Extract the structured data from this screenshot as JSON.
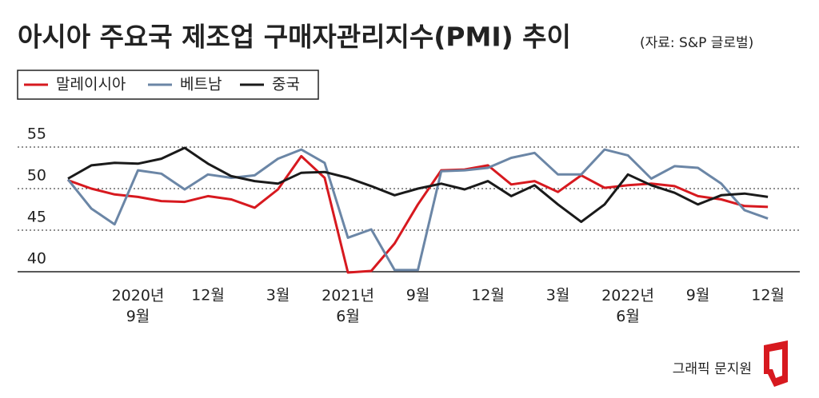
{
  "chart_data": {
    "type": "line",
    "title": "아시아 주요국 제조업 구매자관리지수(PMI) 추이",
    "source": "(자료: S&P 글로벌)",
    "credit": "그래픽 문지원",
    "categories": [
      null,
      null,
      null,
      "2020년 9월",
      null,
      null,
      "12월",
      null,
      null,
      "3월",
      null,
      null,
      "2021년 6월",
      null,
      null,
      "9월",
      null,
      null,
      "12월",
      null,
      null,
      "3월",
      null,
      null,
      "2022년 6월",
      null,
      null,
      "9월",
      null,
      null,
      "12월"
    ],
    "series": [
      {
        "name": "말레이시아",
        "color": "#d7191f",
        "values": [
          51.0,
          50.0,
          49.3,
          49.0,
          48.5,
          48.4,
          49.1,
          48.7,
          47.7,
          49.9,
          53.9,
          51.3,
          39.9,
          40.1,
          43.4,
          48.1,
          52.2,
          52.3,
          52.8,
          50.5,
          50.9,
          49.6,
          51.6,
          50.1,
          50.4,
          50.6,
          50.3,
          49.1,
          48.7,
          47.9,
          47.8
        ]
      },
      {
        "name": "베트남",
        "color": "#6b86a6",
        "values": [
          51.1,
          47.6,
          45.7,
          52.2,
          51.8,
          49.9,
          51.7,
          51.3,
          51.6,
          53.6,
          54.7,
          53.1,
          44.1,
          45.1,
          40.2,
          40.2,
          52.1,
          52.2,
          52.5,
          53.7,
          54.3,
          51.7,
          51.7,
          54.7,
          54.0,
          51.2,
          52.7,
          52.5,
          50.6,
          47.4,
          46.4
        ]
      },
      {
        "name": "중국",
        "color": "#1a1a1a",
        "values": [
          51.2,
          52.8,
          53.1,
          53.0,
          53.6,
          54.9,
          53.0,
          51.5,
          50.9,
          50.6,
          51.9,
          52.0,
          51.3,
          50.3,
          49.2,
          50.0,
          50.6,
          49.9,
          50.9,
          49.1,
          50.4,
          48.1,
          46.0,
          48.1,
          51.7,
          50.4,
          49.5,
          48.1,
          49.2,
          49.4,
          49.0
        ]
      }
    ],
    "ylim": [
      40,
      55
    ],
    "yticks": [
      40,
      45,
      50,
      55
    ],
    "grid": true
  }
}
